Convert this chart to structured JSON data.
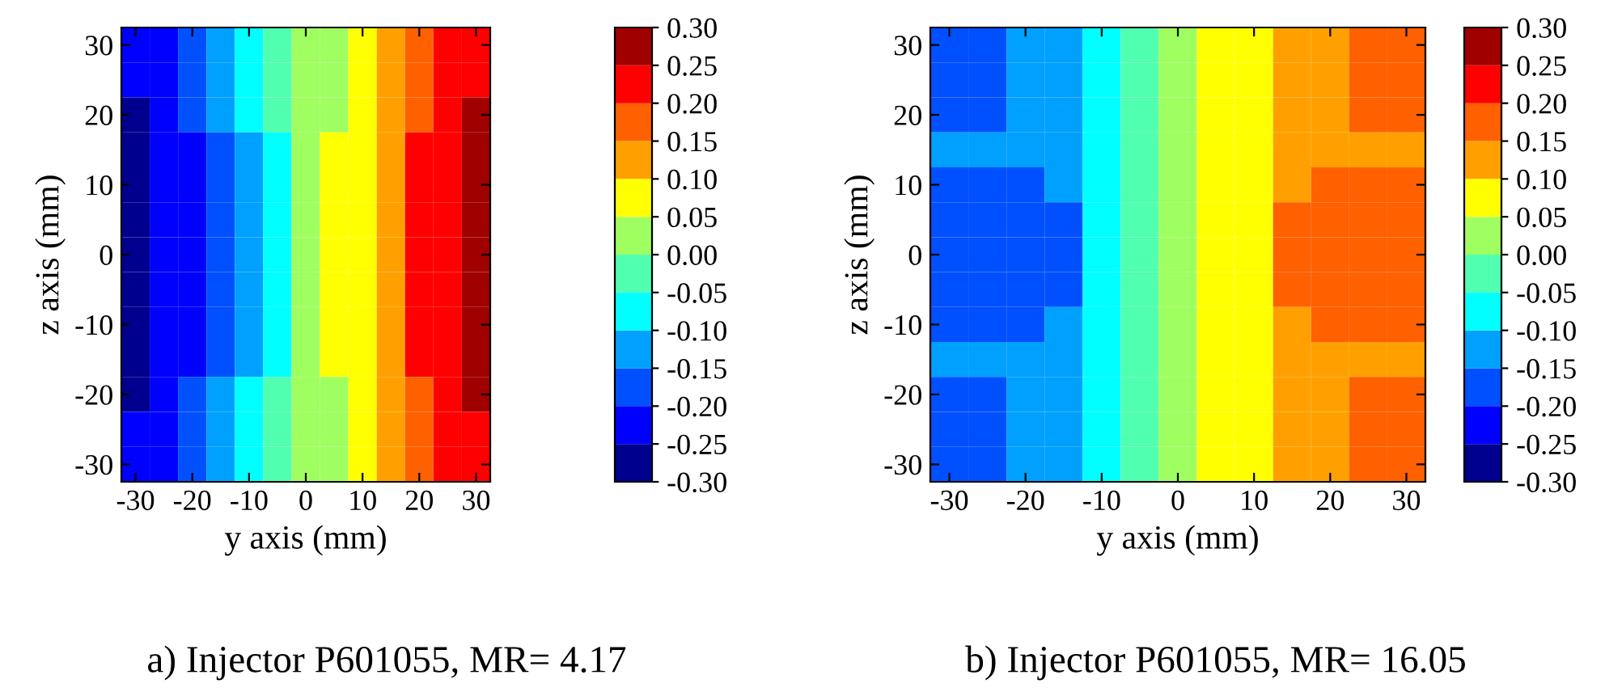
{
  "chart_data": [
    {
      "type": "heatmap",
      "title": "a) Injector P601055, MR= 4.17",
      "xlabel": "y axis (mm)",
      "ylabel": "z axis (mm)",
      "categories": [
        "-30",
        null,
        "-20",
        null,
        "-10",
        null,
        "0",
        null,
        "10",
        null,
        "20",
        null,
        "30"
      ],
      "y_categories": [
        "30",
        null,
        "20",
        null,
        "10",
        null,
        "0",
        null,
        "-10",
        null,
        "-20",
        null,
        "-30"
      ],
      "colors": [
        "#00008f",
        "#0000ff",
        "#0050ff",
        "#00a0ff",
        "#00ffff",
        "#50ffb0",
        "#a0ff60",
        "#ffff00",
        "#ffa000",
        "#ff6000",
        "#ff0000",
        "#a00000"
      ],
      "clim": [
        -0.3,
        0.3
      ],
      "cticks": [
        {
          "value": -0.3,
          "label": "-0.30"
        },
        {
          "value": -0.25,
          "label": "-0.25"
        },
        {
          "value": -0.2,
          "label": "-0.20"
        },
        {
          "value": -0.15,
          "label": "-0.15"
        },
        {
          "value": -0.1,
          "label": "-0.10"
        },
        {
          "value": -0.05,
          "label": "-0.05"
        },
        {
          "value": 0,
          "label": "0.00"
        },
        {
          "value": 0.05,
          "label": "0.05"
        },
        {
          "value": 0.1,
          "label": "0.10"
        },
        {
          "value": 0.15,
          "label": "0.15"
        },
        {
          "value": 0.2,
          "label": "0.20"
        },
        {
          "value": 0.25,
          "label": "0.25"
        },
        {
          "value": 0.3,
          "label": "0.30"
        }
      ],
      "cells": [
        [
          -0.225,
          -0.225,
          -0.175,
          -0.125,
          -0.075,
          -0.025,
          0.025,
          0.025,
          0.075,
          0.125,
          0.175,
          0.225,
          0.225
        ],
        [
          -0.225,
          -0.225,
          -0.175,
          -0.125,
          -0.075,
          -0.025,
          0.025,
          0.025,
          0.075,
          0.125,
          0.175,
          0.225,
          0.225
        ],
        [
          -0.275,
          -0.225,
          -0.175,
          -0.125,
          -0.075,
          -0.025,
          0.025,
          0.025,
          0.075,
          0.125,
          0.175,
          0.225,
          0.275
        ],
        [
          -0.275,
          -0.225,
          -0.225,
          -0.175,
          -0.125,
          -0.075,
          0.025,
          0.075,
          0.075,
          0.125,
          0.225,
          0.225,
          0.275
        ],
        [
          -0.275,
          -0.225,
          -0.225,
          -0.175,
          -0.125,
          -0.075,
          0.025,
          0.075,
          0.075,
          0.125,
          0.225,
          0.225,
          0.275
        ],
        [
          -0.275,
          -0.225,
          -0.225,
          -0.175,
          -0.125,
          -0.075,
          0.025,
          0.075,
          0.075,
          0.125,
          0.225,
          0.225,
          0.275
        ],
        [
          -0.275,
          -0.225,
          -0.225,
          -0.175,
          -0.125,
          -0.075,
          0.025,
          0.075,
          0.075,
          0.125,
          0.225,
          0.225,
          0.275
        ],
        [
          -0.275,
          -0.225,
          -0.225,
          -0.175,
          -0.125,
          -0.075,
          0.025,
          0.075,
          0.075,
          0.125,
          0.225,
          0.225,
          0.275
        ],
        [
          -0.275,
          -0.225,
          -0.225,
          -0.175,
          -0.125,
          -0.075,
          0.025,
          0.075,
          0.075,
          0.125,
          0.225,
          0.225,
          0.275
        ],
        [
          -0.275,
          -0.225,
          -0.225,
          -0.175,
          -0.125,
          -0.075,
          0.025,
          0.075,
          0.075,
          0.125,
          0.225,
          0.225,
          0.275
        ],
        [
          -0.275,
          -0.225,
          -0.175,
          -0.125,
          -0.075,
          -0.025,
          0.025,
          0.025,
          0.075,
          0.125,
          0.175,
          0.225,
          0.275
        ],
        [
          -0.225,
          -0.225,
          -0.175,
          -0.125,
          -0.075,
          -0.025,
          0.025,
          0.025,
          0.075,
          0.125,
          0.175,
          0.225,
          0.225
        ],
        [
          -0.225,
          -0.225,
          -0.175,
          -0.125,
          -0.075,
          -0.025,
          0.025,
          0.025,
          0.075,
          0.125,
          0.175,
          0.225,
          0.225
        ]
      ]
    },
    {
      "type": "heatmap",
      "title": "b) Injector P601055, MR= 16.05",
      "xlabel": "y axis (mm)",
      "ylabel": "z axis (mm)",
      "categories": [
        "-30",
        null,
        "-20",
        null,
        "-10",
        null,
        "0",
        null,
        "10",
        null,
        "20",
        null,
        "30"
      ],
      "y_categories": [
        "30",
        null,
        "20",
        null,
        "10",
        null,
        "0",
        null,
        "-10",
        null,
        "-20",
        null,
        "-30"
      ],
      "colors": [
        "#00008f",
        "#0000ff",
        "#0050ff",
        "#00a0ff",
        "#00ffff",
        "#50ffb0",
        "#a0ff60",
        "#ffff00",
        "#ffa000",
        "#ff6000",
        "#ff0000",
        "#a00000"
      ],
      "clim": [
        -0.3,
        0.3
      ],
      "cticks": [
        {
          "value": -0.3,
          "label": "-0.30"
        },
        {
          "value": -0.25,
          "label": "-0.25"
        },
        {
          "value": -0.2,
          "label": "-0.20"
        },
        {
          "value": -0.15,
          "label": "-0.15"
        },
        {
          "value": -0.1,
          "label": "-0.10"
        },
        {
          "value": -0.05,
          "label": "-0.05"
        },
        {
          "value": 0,
          "label": "0.00"
        },
        {
          "value": 0.05,
          "label": "0.05"
        },
        {
          "value": 0.1,
          "label": "0.10"
        },
        {
          "value": 0.15,
          "label": "0.15"
        },
        {
          "value": 0.2,
          "label": "0.20"
        },
        {
          "value": 0.25,
          "label": "0.25"
        },
        {
          "value": 0.3,
          "label": "0.30"
        }
      ],
      "cells": [
        [
          -0.175,
          -0.175,
          -0.125,
          -0.125,
          -0.075,
          -0.025,
          0.025,
          0.075,
          0.075,
          0.125,
          0.125,
          0.175,
          0.175
        ],
        [
          -0.175,
          -0.175,
          -0.125,
          -0.125,
          -0.075,
          -0.025,
          0.025,
          0.075,
          0.075,
          0.125,
          0.125,
          0.175,
          0.175
        ],
        [
          -0.175,
          -0.175,
          -0.125,
          -0.125,
          -0.075,
          -0.025,
          0.025,
          0.075,
          0.075,
          0.125,
          0.125,
          0.175,
          0.175
        ],
        [
          -0.125,
          -0.125,
          -0.125,
          -0.125,
          -0.075,
          -0.025,
          0.025,
          0.075,
          0.075,
          0.125,
          0.125,
          0.125,
          0.125
        ],
        [
          -0.175,
          -0.175,
          -0.175,
          -0.125,
          -0.075,
          -0.025,
          0.025,
          0.075,
          0.075,
          0.125,
          0.175,
          0.175,
          0.175
        ],
        [
          -0.175,
          -0.175,
          -0.175,
          -0.175,
          -0.075,
          -0.025,
          0.025,
          0.075,
          0.075,
          0.175,
          0.175,
          0.175,
          0.175
        ],
        [
          -0.175,
          -0.175,
          -0.175,
          -0.175,
          -0.075,
          -0.025,
          0.025,
          0.075,
          0.075,
          0.175,
          0.175,
          0.175,
          0.175
        ],
        [
          -0.175,
          -0.175,
          -0.175,
          -0.175,
          -0.075,
          -0.025,
          0.025,
          0.075,
          0.075,
          0.175,
          0.175,
          0.175,
          0.175
        ],
        [
          -0.175,
          -0.175,
          -0.175,
          -0.125,
          -0.075,
          -0.025,
          0.025,
          0.075,
          0.075,
          0.125,
          0.175,
          0.175,
          0.175
        ],
        [
          -0.125,
          -0.125,
          -0.125,
          -0.125,
          -0.075,
          -0.025,
          0.025,
          0.075,
          0.075,
          0.125,
          0.125,
          0.125,
          0.125
        ],
        [
          -0.175,
          -0.175,
          -0.125,
          -0.125,
          -0.075,
          -0.025,
          0.025,
          0.075,
          0.075,
          0.125,
          0.125,
          0.175,
          0.175
        ],
        [
          -0.175,
          -0.175,
          -0.125,
          -0.125,
          -0.075,
          -0.025,
          0.025,
          0.075,
          0.075,
          0.125,
          0.125,
          0.175,
          0.175
        ],
        [
          -0.175,
          -0.175,
          -0.125,
          -0.125,
          -0.075,
          -0.025,
          0.025,
          0.075,
          0.075,
          0.125,
          0.125,
          0.175,
          0.175
        ]
      ]
    }
  ]
}
